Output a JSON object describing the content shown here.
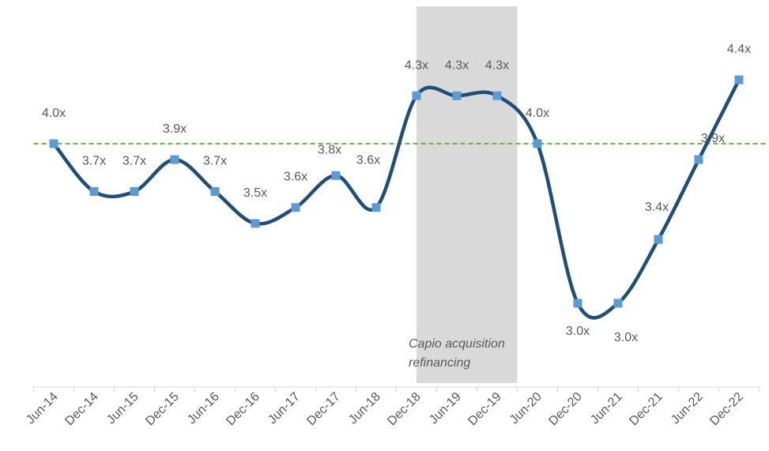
{
  "chart_data": {
    "type": "line",
    "categories": [
      "Jun-14",
      "Dec-14",
      "Jun-15",
      "Dec-15",
      "Jun-16",
      "Dec-16",
      "Jun-17",
      "Dec-17",
      "Jun-18",
      "Dec-18",
      "Jun-19",
      "Dec-19",
      "Jun-20",
      "Dec-20",
      "Jun-21",
      "Dec-21",
      "Jun-22",
      "Dec-22"
    ],
    "series": [
      {
        "color": "#1f4e79",
        "marker_color": "#5b9bd5",
        "values": [
          4.0,
          3.7,
          3.7,
          3.9,
          3.7,
          3.5,
          3.6,
          3.8,
          3.6,
          4.3,
          4.3,
          4.3,
          4.0,
          3.0,
          3.0,
          3.4,
          3.9,
          4.4
        ],
        "value_labels": [
          "4.0x",
          "3.7x",
          "3.7x",
          "3.9x",
          "3.7x",
          "3.5x",
          "3.6x",
          "3.8x",
          "3.6x",
          "4.3x",
          "4.3x",
          "4.3x",
          "4.0x",
          "3.0x",
          "3.0x",
          "3.4x",
          "3.9x",
          "4.4x"
        ]
      }
    ],
    "ylim": [
      2.5,
      4.9
    ],
    "reference_line": {
      "value": 4.0,
      "color": "#70ad47"
    },
    "shaded_range": {
      "from": "Dec-18",
      "to": "Dec-19",
      "color": "#d9d9d9"
    },
    "annotation": "Capio acquisition refinancing"
  }
}
